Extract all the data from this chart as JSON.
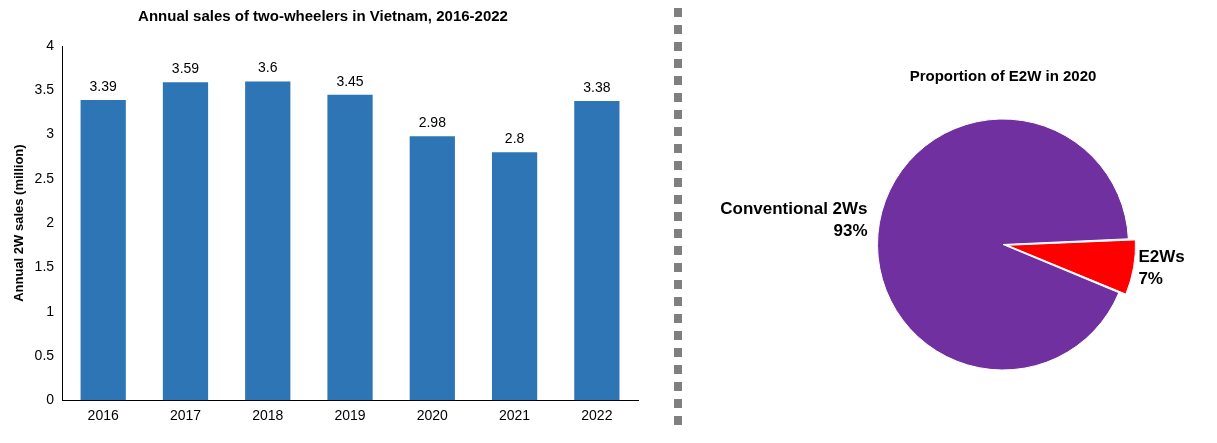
{
  "chart_data": [
    {
      "type": "bar",
      "title": "Annual sales of two-wheelers in Vietnam, 2016-2022",
      "ylabel": "Annual 2W sales (million)",
      "categories": [
        "2016",
        "2017",
        "2018",
        "2019",
        "2020",
        "2021",
        "2022"
      ],
      "values": [
        3.39,
        3.59,
        3.6,
        3.45,
        2.98,
        2.8,
        3.38
      ],
      "color": "#2e75b6",
      "ylim": [
        0,
        4
      ],
      "yticks": [
        0,
        0.5,
        1,
        1.5,
        2,
        2.5,
        3,
        3.5,
        4
      ],
      "grid": false,
      "legend": false,
      "data_labels": true
    },
    {
      "type": "pie",
      "title": "Proportion of E2W in 2020",
      "categories": [
        "Conventional 2Ws",
        "E2Ws"
      ],
      "values": [
        93,
        7
      ],
      "colors": [
        "#7030a0",
        "#ff0000"
      ],
      "value_labels": [
        "93%",
        "7%"
      ],
      "legend": false
    }
  ]
}
